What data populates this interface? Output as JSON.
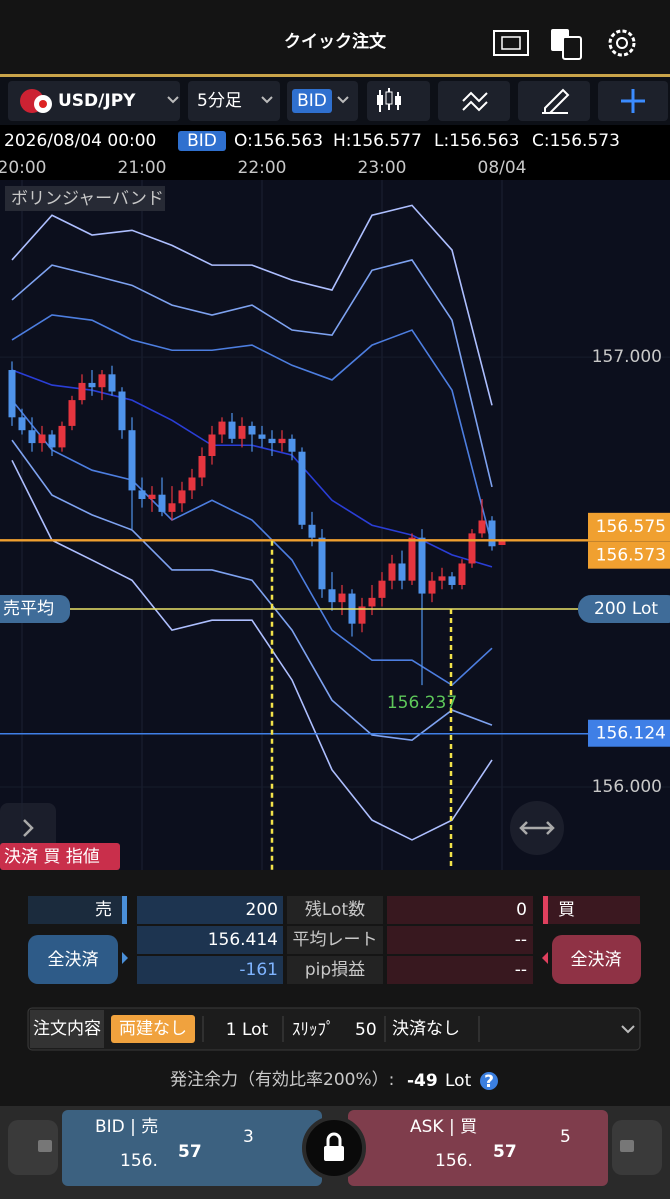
{
  "header": {
    "title": "クイック注文"
  },
  "toolbar": {
    "symbol": "USD/JPY",
    "timeframe": "5分足",
    "price_type": "BID"
  },
  "ohlc": {
    "datetime": "2026/08/04 00:00",
    "badge": "BID",
    "open": "O:156.563",
    "high": "H:156.577",
    "low": "L:156.563",
    "close": "C:156.573"
  },
  "chart_data": {
    "type": "candlestick",
    "indicator": "ボリンジャーバンド",
    "categories": [
      null,
      "20:00",
      null,
      null,
      null,
      null,
      null,
      null,
      null,
      null,
      null,
      null,
      null,
      "21:00",
      null,
      null,
      null,
      null,
      null,
      null,
      null,
      null,
      null,
      null,
      null,
      "22:00",
      null,
      null,
      null,
      null,
      null,
      null,
      null,
      null,
      null,
      null,
      null,
      "23:00",
      null,
      null,
      null,
      null,
      null,
      null,
      null,
      null,
      null,
      null,
      null,
      "08/04"
    ],
    "open": [
      156.97,
      156.86,
      156.83,
      156.8,
      156.82,
      156.79,
      156.84,
      156.9,
      156.94,
      156.93,
      156.96,
      156.92,
      156.83,
      156.69,
      156.67,
      156.68,
      156.64,
      156.66,
      156.69,
      156.72,
      156.77,
      156.82,
      156.85,
      156.81,
      156.84,
      156.82,
      156.81,
      156.8,
      156.81,
      156.78,
      156.61,
      156.58,
      156.46,
      156.43,
      156.45,
      156.38,
      156.42,
      156.44,
      156.48,
      156.52,
      156.48,
      156.58,
      156.45,
      156.48,
      156.49,
      156.47,
      156.52,
      156.59,
      156.62,
      156.563
    ],
    "high": [
      156.99,
      156.88,
      156.86,
      156.84,
      156.83,
      156.85,
      156.91,
      156.96,
      156.97,
      156.97,
      156.98,
      156.93,
      156.86,
      156.72,
      156.7,
      156.72,
      156.7,
      156.71,
      156.74,
      156.79,
      156.84,
      156.86,
      156.87,
      156.86,
      156.85,
      156.84,
      156.83,
      156.83,
      156.82,
      156.79,
      156.64,
      156.6,
      156.5,
      156.47,
      156.46,
      156.44,
      156.47,
      156.5,
      156.54,
      156.55,
      156.59,
      156.6,
      156.5,
      156.51,
      156.5,
      156.53,
      156.6,
      156.67,
      156.63,
      156.577
    ],
    "low": [
      156.84,
      156.82,
      156.78,
      156.78,
      156.77,
      156.78,
      156.83,
      156.89,
      156.91,
      156.9,
      156.91,
      156.81,
      156.6,
      156.65,
      156.64,
      156.63,
      156.62,
      156.64,
      156.67,
      156.7,
      156.75,
      156.8,
      156.8,
      156.79,
      156.78,
      156.79,
      156.77,
      156.78,
      156.76,
      156.6,
      156.56,
      156.44,
      156.41,
      156.4,
      156.35,
      156.36,
      156.4,
      156.42,
      156.46,
      156.46,
      156.47,
      156.237,
      156.43,
      156.46,
      156.46,
      156.46,
      156.51,
      156.58,
      156.55,
      156.563
    ],
    "close": [
      156.86,
      156.83,
      156.8,
      156.82,
      156.79,
      156.84,
      156.9,
      156.94,
      156.93,
      156.96,
      156.92,
      156.83,
      156.69,
      156.67,
      156.68,
      156.64,
      156.66,
      156.69,
      156.72,
      156.77,
      156.82,
      156.85,
      156.81,
      156.84,
      156.82,
      156.81,
      156.8,
      156.81,
      156.78,
      156.61,
      156.58,
      156.46,
      156.43,
      156.45,
      156.38,
      156.42,
      156.44,
      156.48,
      156.52,
      156.48,
      156.58,
      156.45,
      156.48,
      156.49,
      156.47,
      156.52,
      156.59,
      156.62,
      156.56,
      156.573
    ],
    "up_color": "#e5353f",
    "down_color": "#4f93ea",
    "band_x": [
      0,
      4,
      8,
      12,
      16,
      20,
      24,
      28,
      32,
      36,
      40,
      44,
      48
    ],
    "bands": [
      {
        "color": "#aebfff",
        "values": [
          157.226,
          157.33,
          157.284,
          157.295,
          157.26,
          157.214,
          157.214,
          157.179,
          157.156,
          157.33,
          157.353,
          157.249,
          156.888
        ]
      },
      {
        "color": "#7ea2f0",
        "values": [
          157.133,
          157.214,
          157.191,
          157.167,
          157.121,
          157.098,
          157.121,
          157.063,
          157.051,
          157.202,
          157.226,
          157.086,
          156.698
        ]
      },
      {
        "color": "#4d7ee0",
        "values": [
          157.04,
          157.098,
          157.086,
          157.04,
          157.016,
          157.016,
          157.028,
          156.981,
          156.947,
          157.028,
          157.063,
          156.923,
          156.563
        ]
      },
      {
        "color": "#2a3ed6",
        "values": [
          156.97,
          156.935,
          156.923,
          156.9,
          156.853,
          156.795,
          156.795,
          156.772,
          156.667,
          156.609,
          156.586,
          156.54,
          156.512
        ]
      },
      {
        "color": "#4d7ee0",
        "values": [
          156.9,
          156.784,
          156.737,
          156.714,
          156.621,
          156.667,
          156.621,
          156.528,
          156.365,
          156.295,
          156.295,
          156.237,
          156.323
        ]
      },
      {
        "color": "#7ea2f0",
        "values": [
          156.807,
          156.679,
          156.633,
          156.598,
          156.505,
          156.505,
          156.481,
          156.365,
          156.202,
          156.121,
          156.109,
          156.179,
          156.144
        ]
      },
      {
        "color": "#aebfff",
        "values": [
          156.76,
          156.574,
          156.528,
          156.481,
          156.365,
          156.388,
          156.388,
          156.249,
          156.04,
          155.923,
          155.877,
          155.923,
          156.063
        ]
      }
    ],
    "ylim": [
      155.807,
      157.412
    ],
    "yticks": [
      {
        "value": 157,
        "label": "157.000"
      },
      {
        "value": 156,
        "label": "156.000"
      }
    ],
    "price_lines": [
      {
        "value": 156.575,
        "color": "#f0a030"
      },
      {
        "value": 156.573,
        "color": "#f0a030"
      },
      {
        "value": 156.124,
        "color": "#3f7fe6"
      }
    ],
    "position_line": {
      "value": 156.414,
      "color": "#ece46a",
      "left_label": "売平均",
      "right_label": "200 Lot"
    },
    "low_marker": {
      "index": 41,
      "value": 156.237
    }
  },
  "order_label": "決済 買 指値",
  "position": {
    "sell_label": "売",
    "sell_lots": "200",
    "lots_label": "残Lot数",
    "buy_lots": "0",
    "buy_label": "買",
    "close_all_sell": "全決済",
    "sell_avg": "156.414",
    "avg_label": "平均レート",
    "buy_avg": "--",
    "close_all_buy": "全決済",
    "sell_pips": "-161",
    "pips_label": "pip損益",
    "buy_pips": "--"
  },
  "order_settings": {
    "label": "注文内容",
    "hedge": "両建なし",
    "lot": "1 Lot",
    "slip_label": "ｽﾘｯﾌﾟ",
    "slip": "50",
    "settle": "決済なし"
  },
  "margin": {
    "label": "発注余力（有効比率200%）:",
    "value": "-49",
    "unit": "Lot"
  },
  "quote": {
    "bid_label": "BID | 売",
    "bid_big": "156.",
    "bid_main": "57",
    "bid_small": "3",
    "ask_label": "ASK | 買",
    "ask_big": "156.",
    "ask_main": "57",
    "ask_small": "5"
  }
}
